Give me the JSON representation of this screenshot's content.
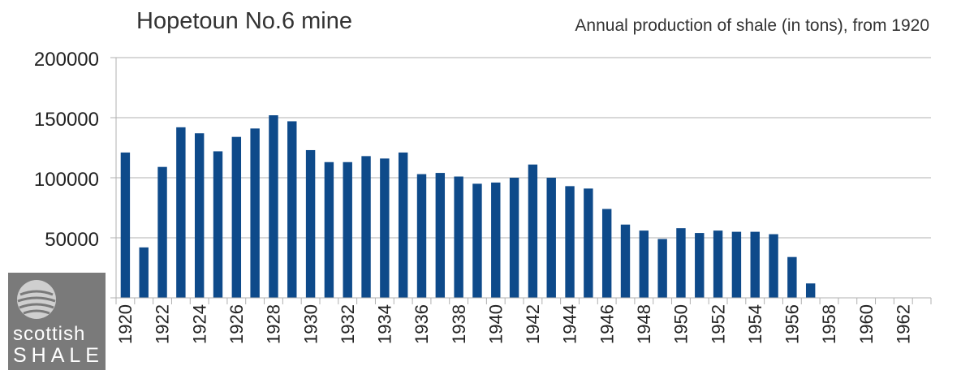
{
  "chart_data": {
    "type": "bar",
    "title": "Hopetoun No.6 mine",
    "subtitle": "Annual production of shale (in tons), from 1920",
    "xlabel": "",
    "ylabel": "",
    "ylim": [
      0,
      200000
    ],
    "y_ticks": [
      "0",
      "50000",
      "100000",
      "150000",
      "200000"
    ],
    "grid": true,
    "legend": "none",
    "bar_color": "#0e4a8a",
    "categories": [
      "1920",
      "1921",
      "1922",
      "1923",
      "1924",
      "1925",
      "1926",
      "1927",
      "1928",
      "1929",
      "1930",
      "1931",
      "1932",
      "1933",
      "1934",
      "1935",
      "1936",
      "1937",
      "1938",
      "1939",
      "1940",
      "1941",
      "1942",
      "1943",
      "1944",
      "1945",
      "1946",
      "1947",
      "1948",
      "1949",
      "1950",
      "1951",
      "1952",
      "1953",
      "1954",
      "1955",
      "1956",
      "1957",
      "1958",
      "1959",
      "1960",
      "1961",
      "1962",
      "1963"
    ],
    "x_tick_labels": [
      "1920",
      "",
      "1922",
      "",
      "1924",
      "",
      "1926",
      "",
      "1928",
      "",
      "1930",
      "",
      "1932",
      "",
      "1934",
      "",
      "1936",
      "",
      "1938",
      "",
      "1940",
      "",
      "1942",
      "",
      "1944",
      "",
      "1946",
      "",
      "1948",
      "",
      "1950",
      "",
      "1952",
      "",
      "1954",
      "",
      "1956",
      "",
      "1958",
      "",
      "1960",
      "",
      "1962",
      ""
    ],
    "values": [
      121000,
      42000,
      109000,
      142000,
      137000,
      122000,
      134000,
      141000,
      152000,
      147000,
      123000,
      113000,
      113000,
      118000,
      116000,
      121000,
      103000,
      104000,
      101000,
      95000,
      96000,
      100000,
      111000,
      100000,
      93000,
      91000,
      74000,
      61000,
      56000,
      49000,
      58000,
      54000,
      56000,
      55000,
      55000,
      53000,
      34000,
      12000,
      0,
      0,
      0,
      0,
      0,
      0
    ]
  },
  "logo": {
    "word1": "scottish",
    "word2": "SHALE",
    "background": "#7a7a7a"
  }
}
